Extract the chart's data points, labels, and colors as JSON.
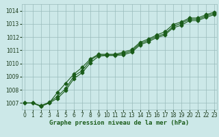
{
  "xlabel": "Graphe pression niveau de la mer (hPa)",
  "background_color": "#cce8e8",
  "grid_color": "#99bbbb",
  "line_color": "#1a5c1a",
  "ylim": [
    1006.5,
    1014.5
  ],
  "xlim": [
    -0.3,
    23.3
  ],
  "yticks": [
    1007,
    1008,
    1009,
    1010,
    1011,
    1012,
    1013,
    1014
  ],
  "xticks": [
    0,
    1,
    2,
    3,
    4,
    5,
    6,
    7,
    8,
    9,
    10,
    11,
    12,
    13,
    14,
    15,
    16,
    17,
    18,
    19,
    20,
    21,
    22,
    23
  ],
  "series1_x": [
    0,
    1,
    2,
    3,
    4,
    5,
    6,
    7,
    8,
    9,
    10,
    11,
    12,
    13,
    14,
    15,
    16,
    17,
    18,
    19,
    20,
    21,
    22,
    23
  ],
  "series1_y": [
    1007.0,
    1007.0,
    1006.8,
    1007.05,
    1007.5,
    1008.1,
    1009.05,
    1009.45,
    1010.25,
    1010.65,
    1010.65,
    1010.65,
    1010.75,
    1010.95,
    1011.5,
    1011.75,
    1012.05,
    1012.25,
    1012.8,
    1013.05,
    1013.35,
    1013.35,
    1013.6,
    1013.8
  ],
  "series2_x": [
    0,
    1,
    2,
    3,
    4,
    5,
    6,
    7,
    8,
    9,
    10,
    11,
    12,
    13,
    14,
    15,
    16,
    17,
    18,
    19,
    20,
    21,
    22,
    23
  ],
  "series2_y": [
    1007.0,
    1007.0,
    1006.75,
    1007.0,
    1007.8,
    1008.5,
    1009.2,
    1009.7,
    1010.35,
    1010.7,
    1010.7,
    1010.7,
    1010.85,
    1011.05,
    1011.6,
    1011.85,
    1012.15,
    1012.4,
    1012.95,
    1013.15,
    1013.45,
    1013.45,
    1013.7,
    1013.9
  ],
  "series3_x": [
    0,
    1,
    2,
    3,
    4,
    5,
    6,
    7,
    8,
    9,
    10,
    11,
    12,
    13,
    14,
    15,
    16,
    17,
    18,
    19,
    20,
    21,
    22,
    23
  ],
  "series3_y": [
    1007.0,
    1007.0,
    1006.75,
    1007.0,
    1007.35,
    1007.95,
    1008.85,
    1009.3,
    1010.05,
    1010.55,
    1010.6,
    1010.6,
    1010.65,
    1010.85,
    1011.4,
    1011.65,
    1011.95,
    1012.15,
    1012.7,
    1012.9,
    1013.25,
    1013.25,
    1013.5,
    1013.7
  ],
  "marker": "D",
  "marker_size": 2.5,
  "linewidth": 0.8,
  "xlabel_fontsize": 6.5,
  "tick_fontsize": 5.5
}
